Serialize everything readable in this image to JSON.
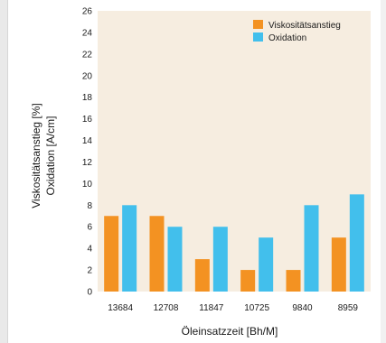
{
  "chart_data": {
    "type": "bar",
    "categories": [
      "13684",
      "12708",
      "11847",
      "10725",
      "9840",
      "8959"
    ],
    "series": [
      {
        "name": "Viskositätsanstieg",
        "color": "#f39222",
        "values": [
          7,
          7,
          3,
          2,
          2,
          5
        ]
      },
      {
        "name": "Oxidation",
        "color": "#42bfec",
        "values": [
          8,
          6,
          6,
          5,
          8,
          9
        ]
      }
    ],
    "title": "",
    "xlabel": "Öleinsatzzeit [Bh/M]",
    "ylabel_line1": "Viskositätsanstieg [%]",
    "ylabel_line2": "Oxidation [A/cm]",
    "ylim": [
      0,
      26
    ],
    "yticks": [
      0,
      2,
      4,
      6,
      8,
      10,
      12,
      14,
      16,
      18,
      20,
      22,
      24,
      26
    ],
    "grid": false,
    "legend_position": "top-right",
    "plot_background": "#f6ede0"
  }
}
